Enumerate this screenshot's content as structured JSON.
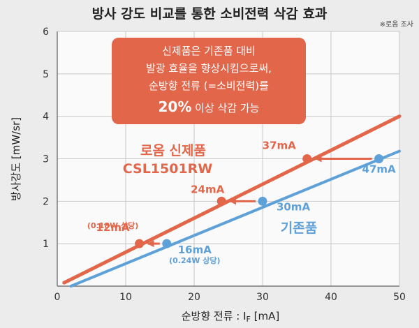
{
  "chart_data": {
    "type": "line",
    "title": "방사 강도 비교를 통한 소비전력 삭감 효과",
    "source_note": "※로옴 조사",
    "xlabel_main": "순방향 전류 : I",
    "xlabel_sub": "F",
    "xlabel_unit": " [mA]",
    "ylabel": "방사강도 [mW/sr]",
    "xlim": [
      0,
      50
    ],
    "ylim": [
      0,
      6
    ],
    "x_ticks": [
      "0",
      "10",
      "20",
      "30",
      "40",
      "50"
    ],
    "y_ticks": [
      "1",
      "2",
      "3",
      "4",
      "5",
      "6"
    ],
    "grid": true,
    "series": [
      {
        "name": "로옴 신제품",
        "name2": "CSL1501RW",
        "color": "#e2664a",
        "x": [
          1,
          50
        ],
        "y": [
          0.08,
          4.0
        ]
      },
      {
        "name": "기존품",
        "color": "#5ea0d8",
        "x": [
          2,
          50
        ],
        "y": [
          0.0,
          3.18
        ]
      }
    ],
    "points": [
      {
        "series": 0,
        "x": 12,
        "y": 1.0,
        "label": "12mA",
        "sublabel": "(0.18W 상당)"
      },
      {
        "series": 0,
        "x": 24,
        "y": 2.0,
        "label": "24mA"
      },
      {
        "series": 0,
        "x": 36.5,
        "y": 3.0,
        "label": "37mA"
      },
      {
        "series": 1,
        "x": 16,
        "y": 1.0,
        "label": "16mA",
        "sublabel": "(0.24W 상당)"
      },
      {
        "series": 1,
        "x": 30,
        "y": 2.0,
        "label": "30mA"
      },
      {
        "series": 1,
        "x": 47,
        "y": 3.0,
        "label": "47mA"
      }
    ],
    "callout": {
      "lines": [
        "신제품은 기존품 대비",
        "발광 효율을 향상시킴으로써,",
        "순방향 전류 (=소비전력)를"
      ],
      "emph": "20%",
      "tail": " 이상 삭감 가능",
      "color": "#e2664a"
    }
  }
}
